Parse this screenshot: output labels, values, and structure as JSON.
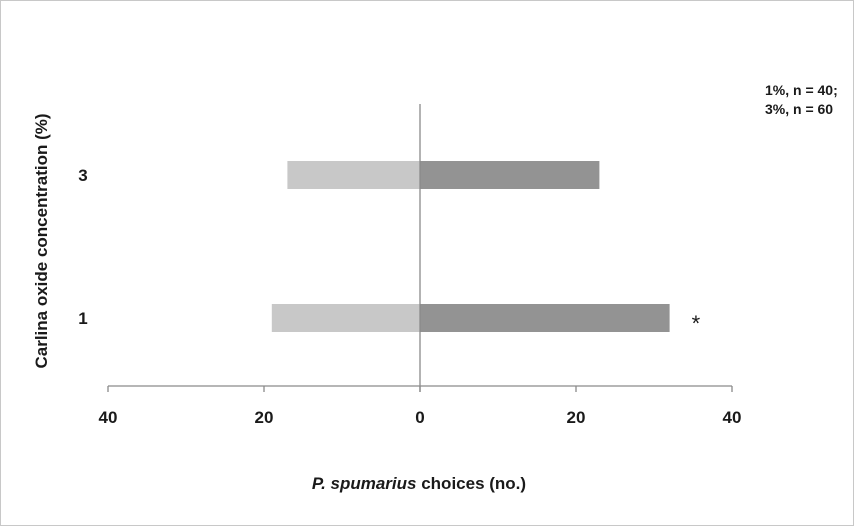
{
  "chart_data": {
    "type": "bar",
    "orientation": "horizontal-diverging",
    "categories": [
      "1",
      "3"
    ],
    "series": [
      {
        "values": [
          19,
          17
        ],
        "color": "#c8c8c8"
      },
      {
        "values": [
          32,
          23
        ],
        "color": "#939393"
      }
    ],
    "significance": [
      "*",
      ""
    ],
    "xlabel_italic": "P. spumarius",
    "xlabel_rest": " choices (no.)",
    "ylabel": "Carlina oxide concentration (%)",
    "xticks": [
      "40",
      "20",
      "0",
      "20",
      "40"
    ],
    "xlim": [
      -40,
      40
    ],
    "annotation": [
      "1%, n = 40;",
      "3%, n = 60"
    ],
    "grid": false
  }
}
